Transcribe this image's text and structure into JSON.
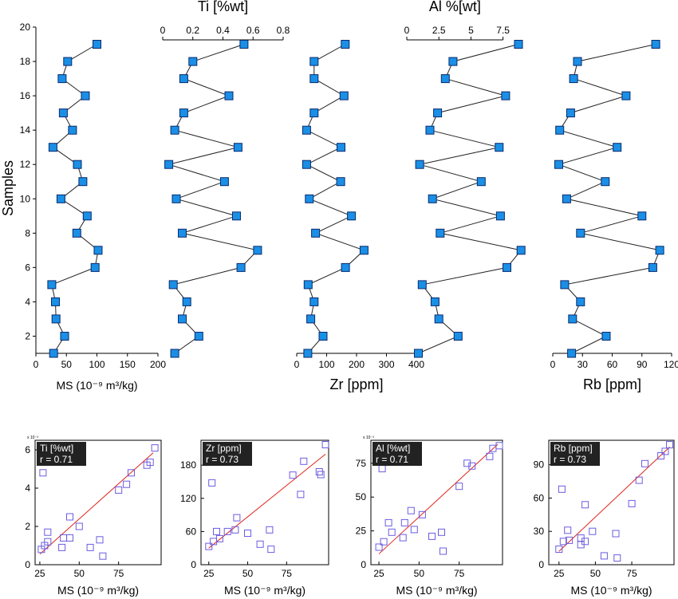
{
  "chart_data": [
    {
      "type": "line",
      "panel": "ms-profile",
      "ylabel": "Samples",
      "yticks": [
        2,
        4,
        6,
        8,
        10,
        12,
        14,
        16,
        18,
        20
      ],
      "ylim": [
        1,
        20
      ],
      "xlabel": "MS (10⁻⁹ m³/kg)",
      "xticks": [
        0,
        50,
        100,
        150,
        200
      ],
      "xlim": [
        0,
        200
      ],
      "xaxis": "bottom",
      "samples": [
        1,
        2,
        3,
        4,
        5,
        6,
        7,
        8,
        9,
        10,
        11,
        12,
        13,
        14,
        15,
        16,
        17,
        18,
        19
      ],
      "values": [
        29,
        47,
        33,
        32,
        26,
        97,
        102,
        67,
        84,
        41,
        77,
        68,
        28,
        60,
        45,
        81,
        43,
        52,
        100
      ]
    },
    {
      "type": "line",
      "panel": "ti-profile",
      "xlabel": "Ti [%wt]",
      "xticks": [
        0,
        0.2,
        0.4,
        0.6,
        0.8
      ],
      "xlim": [
        0,
        0.8
      ],
      "xaxis": "top",
      "samples": [
        1,
        2,
        3,
        4,
        5,
        6,
        7,
        8,
        9,
        10,
        11,
        12,
        13,
        14,
        15,
        16,
        17,
        18,
        19
      ],
      "values": [
        0.08,
        0.24,
        0.13,
        0.16,
        0.07,
        0.52,
        0.63,
        0.13,
        0.49,
        0.09,
        0.41,
        0.04,
        0.5,
        0.08,
        0.14,
        0.44,
        0.14,
        0.2,
        0.54
      ]
    },
    {
      "type": "line",
      "panel": "zr-profile",
      "xlabel": "Zr [ppm]",
      "xticks": [
        0,
        100,
        200,
        300,
        400
      ],
      "xlim": [
        0,
        400
      ],
      "xaxis": "bottom",
      "samples": [
        1,
        2,
        3,
        4,
        5,
        6,
        7,
        8,
        9,
        10,
        11,
        12,
        13,
        14,
        15,
        16,
        17,
        18,
        19
      ],
      "values": [
        37,
        88,
        47,
        58,
        38,
        163,
        225,
        63,
        183,
        42,
        147,
        33,
        148,
        33,
        58,
        158,
        58,
        58,
        162
      ]
    },
    {
      "type": "line",
      "panel": "al-profile",
      "xlabel": "Al %[wt]",
      "xticks": [
        0,
        2.5,
        5,
        7.5
      ],
      "xlim": [
        0,
        9.2
      ],
      "xaxis": "top",
      "samples": [
        1,
        2,
        3,
        4,
        5,
        6,
        7,
        8,
        9,
        10,
        11,
        12,
        13,
        14,
        15,
        16,
        17,
        18,
        19
      ],
      "values": [
        0.9,
        4,
        2.5,
        2.2,
        1.2,
        7.8,
        8.9,
        2.6,
        7.3,
        2,
        5.8,
        1,
        7.2,
        1.8,
        2.4,
        7.7,
        3,
        3.6,
        8.7
      ]
    },
    {
      "type": "line",
      "panel": "rb-profile",
      "xlabel": "Rb [ppm]",
      "xticks": [
        0,
        30,
        60,
        90,
        120
      ],
      "xlim": [
        0,
        120
      ],
      "xaxis": "bottom",
      "samples": [
        1,
        2,
        3,
        4,
        5,
        6,
        7,
        8,
        9,
        10,
        11,
        12,
        13,
        14,
        15,
        16,
        17,
        18,
        19
      ],
      "values": [
        19,
        54,
        20,
        28,
        12,
        101,
        108,
        28,
        90,
        14,
        53,
        6,
        65,
        7,
        18,
        74,
        21,
        25,
        104
      ]
    },
    {
      "type": "scatter",
      "panel": "ti-scatter",
      "ann_name": "Ti [%wt]",
      "r": "r = 0.71",
      "multiplier": "x 10⁻³",
      "xlabel": "MS (10⁻⁹ m³/kg)",
      "xticks": [
        25,
        50,
        75
      ],
      "yticks": [
        0,
        2,
        4,
        6
      ],
      "xlim": [
        22,
        102
      ],
      "ylim": [
        0,
        6.5
      ],
      "points": [
        [
          26,
          0.8
        ],
        [
          28,
          1
        ],
        [
          30,
          1.2
        ],
        [
          30,
          1.7
        ],
        [
          27,
          4.8
        ],
        [
          39,
          0.9
        ],
        [
          40,
          1.4
        ],
        [
          44,
          1.4
        ],
        [
          44,
          2.5
        ],
        [
          50,
          2
        ],
        [
          57,
          0.9
        ],
        [
          63,
          1.3
        ],
        [
          65,
          0.45
        ],
        [
          75,
          3.9
        ],
        [
          80,
          4.2
        ],
        [
          83,
          4.8
        ],
        [
          93,
          5.2
        ],
        [
          95,
          5.35
        ],
        [
          98,
          6.1
        ]
      ],
      "fit": [
        [
          25,
          0.55
        ],
        [
          97,
          5.85
        ]
      ]
    },
    {
      "type": "scatter",
      "panel": "zr-scatter",
      "ann_name": "Zr [ppm]",
      "r": "r = 0.73",
      "xlabel": "MS (10⁻⁹ m³/kg)",
      "xticks": [
        25,
        50,
        75
      ],
      "yticks": [
        0,
        60,
        120,
        180
      ],
      "xlim": [
        20,
        102
      ],
      "ylim": [
        0,
        225
      ],
      "points": [
        [
          25,
          33
        ],
        [
          28,
          42
        ],
        [
          30,
          60
        ],
        [
          32,
          47
        ],
        [
          37,
          60
        ],
        [
          42,
          63
        ],
        [
          43,
          85
        ],
        [
          27,
          148
        ],
        [
          50,
          57
        ],
        [
          58,
          37
        ],
        [
          64,
          63
        ],
        [
          65,
          28
        ],
        [
          79,
          162
        ],
        [
          84,
          127
        ],
        [
          86,
          187
        ],
        [
          96,
          168
        ],
        [
          97,
          163
        ],
        [
          100,
          217
        ]
      ],
      "fit": [
        [
          25,
          30
        ],
        [
          100,
          200
        ]
      ]
    },
    {
      "type": "scatter",
      "panel": "al-scatter",
      "ann_name": "Al [%wt]",
      "r": "r = 0.71",
      "multiplier": "x 10⁻³",
      "xlabel": "MS (10⁻⁹ m³/kg)",
      "xticks": [
        25,
        50,
        75
      ],
      "yticks": [
        0,
        25,
        50,
        75
      ],
      "xlim": [
        20,
        102
      ],
      "ylim": [
        0,
        92
      ],
      "points": [
        [
          25,
          13
        ],
        [
          28,
          17
        ],
        [
          31,
          31
        ],
        [
          33,
          24
        ],
        [
          40,
          20
        ],
        [
          41,
          31
        ],
        [
          45,
          40
        ],
        [
          47,
          26
        ],
        [
          52,
          37
        ],
        [
          58,
          21
        ],
        [
          64,
          24
        ],
        [
          65,
          10
        ],
        [
          27,
          71
        ],
        [
          75,
          58
        ],
        [
          80,
          75
        ],
        [
          83,
          73
        ],
        [
          94,
          80
        ],
        [
          96,
          86
        ],
        [
          100,
          88
        ]
      ],
      "fit": [
        [
          25,
          8
        ],
        [
          99,
          89
        ]
      ]
    },
    {
      "type": "scatter",
      "panel": "rb-scatter",
      "ann_name": "Rb [ppm]",
      "r": "r = 0.73",
      "xlabel": "MS (10⁻⁹ m³/kg)",
      "xticks": [
        25,
        50,
        75
      ],
      "yticks": [
        0,
        30,
        60,
        90
      ],
      "xlim": [
        18,
        104
      ],
      "ylim": [
        0,
        112
      ],
      "points": [
        [
          25,
          14
        ],
        [
          27,
          68
        ],
        [
          28,
          21
        ],
        [
          31,
          31
        ],
        [
          32,
          22
        ],
        [
          40,
          18
        ],
        [
          40,
          24
        ],
        [
          43,
          54
        ],
        [
          43,
          21
        ],
        [
          48,
          30
        ],
        [
          56,
          8
        ],
        [
          64,
          28
        ],
        [
          65,
          6
        ],
        [
          75,
          55
        ],
        [
          80,
          76
        ],
        [
          84,
          91
        ],
        [
          95,
          98
        ],
        [
          98,
          102
        ],
        [
          101,
          108
        ]
      ],
      "fit": [
        [
          25,
          12
        ],
        [
          101,
          106
        ]
      ]
    }
  ],
  "colors": {
    "marker_fill": "#1a8fe6",
    "marker_stroke": "#0a2a6e",
    "hollow": "#6b5ce0",
    "fit": "#e0241b"
  }
}
